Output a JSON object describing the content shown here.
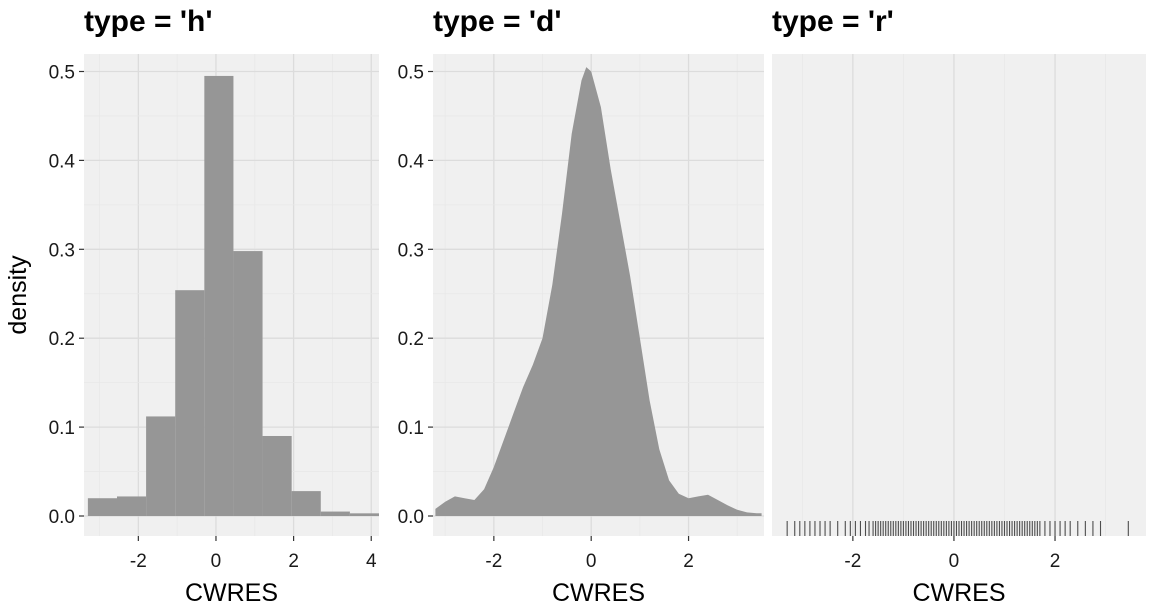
{
  "chart_data": [
    {
      "type": "bar",
      "title": "type = 'h'",
      "xlabel": "CWRES",
      "ylabel": "density",
      "xlim": [
        -3.4,
        4.2
      ],
      "ylim": [
        0,
        0.52
      ],
      "xticks": [
        -2,
        0,
        2,
        4
      ],
      "yticks": [
        0.0,
        0.1,
        0.2,
        0.3,
        0.4,
        0.5
      ],
      "bins": [
        {
          "x0": -3.3,
          "x1": -2.55,
          "y": 0.02
        },
        {
          "x0": -2.55,
          "x1": -1.8,
          "y": 0.022
        },
        {
          "x0": -1.8,
          "x1": -1.05,
          "y": 0.112
        },
        {
          "x0": -1.05,
          "x1": -0.3,
          "y": 0.254
        },
        {
          "x0": -0.3,
          "x1": 0.45,
          "y": 0.495
        },
        {
          "x0": 0.45,
          "x1": 1.2,
          "y": 0.298
        },
        {
          "x0": 1.2,
          "x1": 1.95,
          "y": 0.09
        },
        {
          "x0": 1.95,
          "x1": 2.7,
          "y": 0.028
        },
        {
          "x0": 2.7,
          "x1": 3.45,
          "y": 0.005
        },
        {
          "x0": 3.45,
          "x1": 4.2,
          "y": 0.003
        }
      ],
      "fill": "#969696",
      "panel_bg": "#f0f0f0",
      "grid": true
    },
    {
      "type": "area",
      "title": "type = 'd'",
      "xlabel": "CWRES",
      "ylabel": "",
      "xlim": [
        -3.25,
        3.55
      ],
      "ylim": [
        0,
        0.52
      ],
      "xticks": [
        -2,
        0,
        2
      ],
      "yticks": [
        0.0,
        0.1,
        0.2,
        0.3,
        0.4,
        0.5
      ],
      "x": [
        -3.2,
        -3.0,
        -2.8,
        -2.6,
        -2.4,
        -2.2,
        -2.0,
        -1.8,
        -1.6,
        -1.4,
        -1.2,
        -1.0,
        -0.8,
        -0.6,
        -0.4,
        -0.2,
        -0.1,
        0.0,
        0.2,
        0.4,
        0.6,
        0.8,
        1.0,
        1.2,
        1.4,
        1.6,
        1.8,
        2.0,
        2.2,
        2.4,
        2.6,
        2.8,
        3.0,
        3.2,
        3.4,
        3.5
      ],
      "y": [
        0.008,
        0.016,
        0.022,
        0.02,
        0.018,
        0.03,
        0.055,
        0.085,
        0.115,
        0.145,
        0.17,
        0.2,
        0.26,
        0.34,
        0.43,
        0.49,
        0.505,
        0.5,
        0.46,
        0.39,
        0.33,
        0.27,
        0.2,
        0.13,
        0.075,
        0.04,
        0.025,
        0.02,
        0.022,
        0.024,
        0.018,
        0.012,
        0.007,
        0.004,
        0.003,
        0.003
      ],
      "fill": "#969696",
      "panel_bg": "#f0f0f0",
      "grid": true
    },
    {
      "type": "scatter",
      "title": "type = 'r'",
      "xlabel": "CWRES",
      "ylabel": "",
      "xlim": [
        -3.6,
        3.8
      ],
      "xticks": [
        -2,
        0,
        2
      ],
      "rug_x": [
        -3.3,
        -3.15,
        -3.05,
        -2.95,
        -2.85,
        -2.75,
        -2.65,
        -2.55,
        -2.45,
        -2.3,
        -2.15,
        -2.05,
        -1.95,
        -1.85,
        -1.75,
        -1.68,
        -1.6,
        -1.55,
        -1.5,
        -1.45,
        -1.4,
        -1.35,
        -1.3,
        -1.25,
        -1.2,
        -1.15,
        -1.1,
        -1.05,
        -1.0,
        -0.95,
        -0.9,
        -0.85,
        -0.8,
        -0.75,
        -0.7,
        -0.65,
        -0.6,
        -0.55,
        -0.5,
        -0.45,
        -0.4,
        -0.35,
        -0.3,
        -0.25,
        -0.2,
        -0.15,
        -0.1,
        -0.05,
        0.0,
        0.05,
        0.1,
        0.15,
        0.2,
        0.25,
        0.3,
        0.35,
        0.4,
        0.45,
        0.5,
        0.55,
        0.6,
        0.65,
        0.7,
        0.75,
        0.8,
        0.85,
        0.9,
        0.95,
        1.0,
        1.05,
        1.1,
        1.15,
        1.2,
        1.25,
        1.3,
        1.35,
        1.4,
        1.45,
        1.5,
        1.55,
        1.6,
        1.65,
        1.7,
        1.8,
        1.9,
        2.0,
        2.1,
        2.2,
        2.3,
        2.45,
        2.6,
        2.75,
        2.9,
        3.45
      ],
      "rug_color": "#4d4d4d",
      "panel_bg": "#f0f0f0",
      "grid": true
    }
  ]
}
